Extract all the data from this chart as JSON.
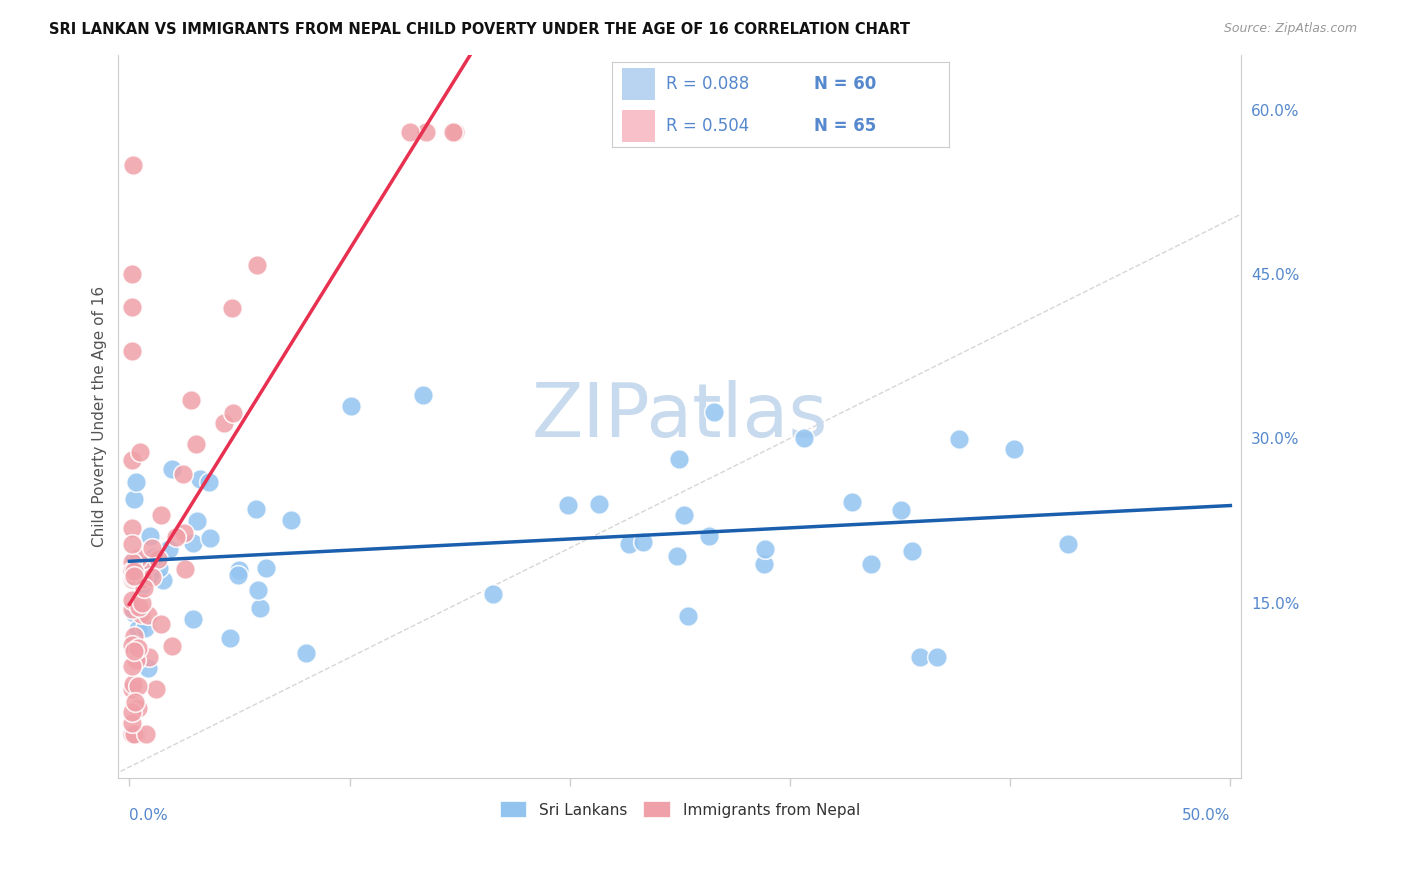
{
  "title": "SRI LANKAN VS IMMIGRANTS FROM NEPAL CHILD POVERTY UNDER THE AGE OF 16 CORRELATION CHART",
  "source": "Source: ZipAtlas.com",
  "ylabel": "Child Poverty Under the Age of 16",
  "sri_lanka_color": "#93c4f0",
  "nepal_color": "#f0a0a8",
  "sri_lanka_line_color": "#1a5fad",
  "nepal_line_color": "#e83050",
  "legend_blue_fill": "#b8d4f0",
  "legend_pink_fill": "#f8c0c8",
  "watermark_color": "#c8daed",
  "r_sl": 0.088,
  "n_sl": 60,
  "r_np": 0.504,
  "n_np": 65,
  "xlim": [
    0.0,
    0.5
  ],
  "ylim": [
    0.0,
    0.65
  ],
  "yticks": [
    0.15,
    0.3,
    0.45,
    0.6
  ],
  "ytick_labels": [
    "15.0%",
    "30.0%",
    "45.0%",
    "60.0%"
  ],
  "title_color": "#111111",
  "axis_label_color": "#5588cc",
  "ylabel_color": "#555555",
  "source_color": "#999999",
  "grid_color": "#dddddd",
  "spine_color": "#cccccc"
}
